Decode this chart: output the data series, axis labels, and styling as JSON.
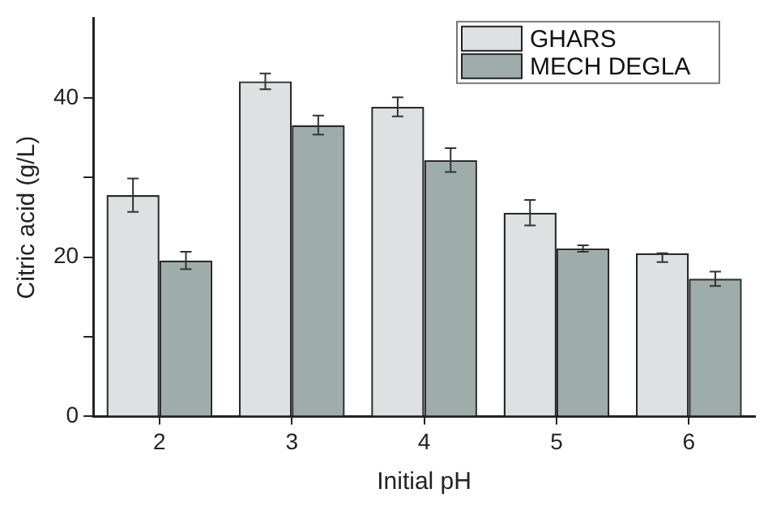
{
  "chart_data": {
    "type": "bar",
    "xlabel": "Initial pH",
    "ylabel": "Citric acid (g/L)",
    "categories": [
      "2",
      "3",
      "4",
      "5",
      "6"
    ],
    "series": [
      {
        "name": "GHARS",
        "color": "#dde1e1",
        "values": [
          27.8,
          42.1,
          38.9,
          25.6,
          20.5
        ],
        "errors": [
          2.1,
          1.0,
          1.2,
          1.6,
          [
            19.4,
            20.5
          ]
        ]
      },
      {
        "name": "MECH DEGLA",
        "color": "#9eadaa",
        "values": [
          19.6,
          36.6,
          32.2,
          21.1,
          17.3
        ],
        "errors": [
          1.1,
          1.2,
          1.5,
          0.4,
          0.9
        ]
      }
    ],
    "ylim": [
      0,
      50
    ],
    "yticks": [
      0,
      {
        "value": 10,
        "label": null
      },
      20,
      {
        "value": 30,
        "label": null
      },
      40
    ],
    "grid": false,
    "legend": "top right"
  }
}
